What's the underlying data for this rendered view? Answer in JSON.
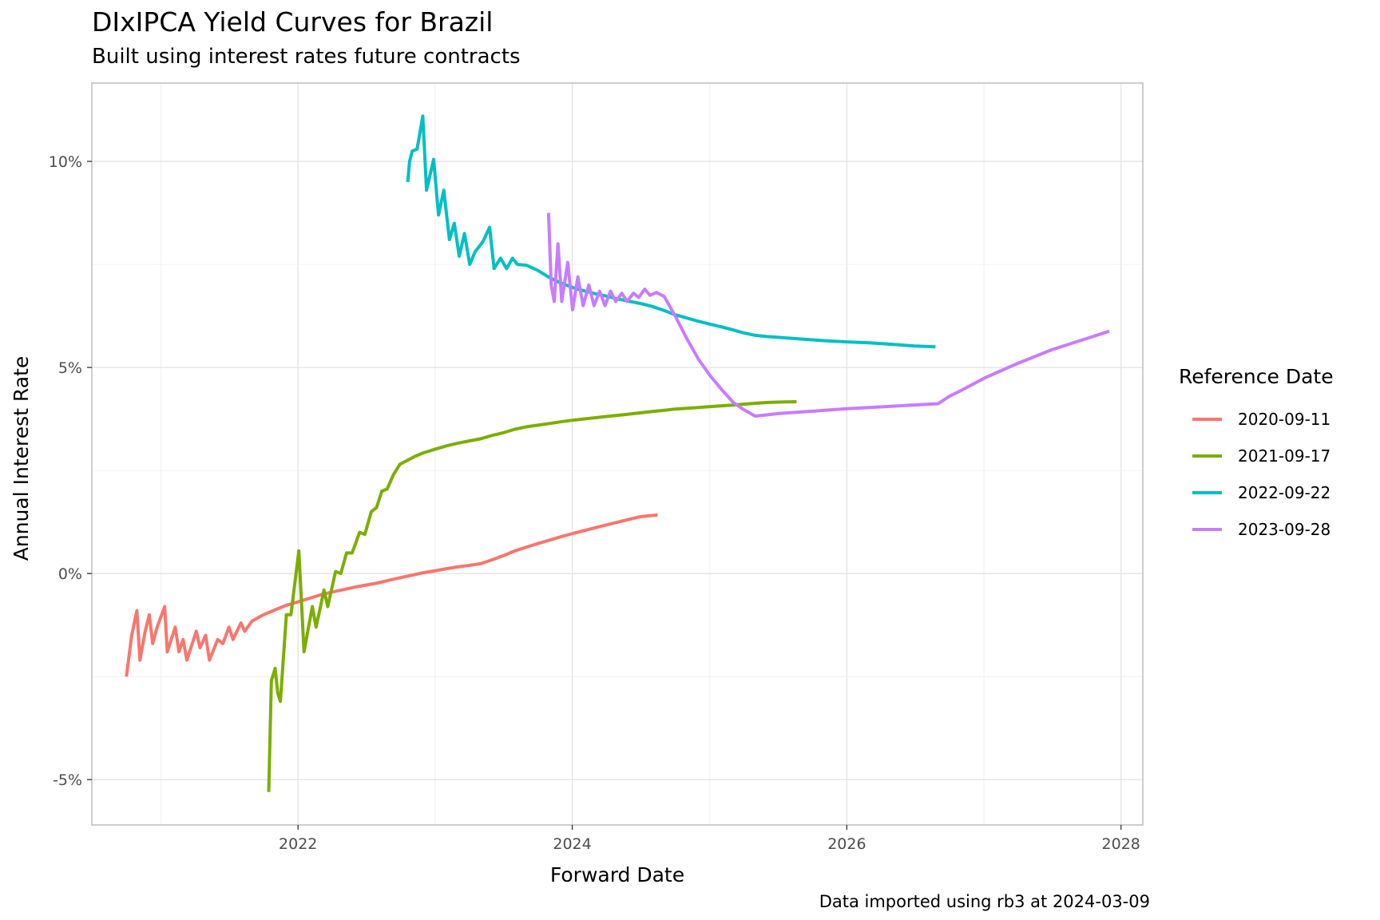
{
  "chart_data": {
    "type": "line",
    "title": "DIxIPCA Yield Curves for Brazil",
    "subtitle": "Built using interest rates future contracts",
    "caption": "Data imported using rb3 at 2024-03-09",
    "xlabel": "Forward Date",
    "ylabel": "Annual Interest Rate",
    "xlim": [
      "2020-07-01",
      "2028-02-28"
    ],
    "ylim": [
      -6.1,
      11.9
    ],
    "x_ticks": [
      "2022",
      "2024",
      "2026",
      "2028"
    ],
    "y_ticks": [
      "-5%",
      "0%",
      "5%",
      "10%"
    ],
    "grid": true,
    "legend": {
      "title": "Reference Date",
      "position": "right"
    },
    "series": [
      {
        "name": "2020-09-11",
        "color": "#F8766D",
        "points": [
          [
            "2020-10-01",
            -2.5
          ],
          [
            "2020-10-15",
            -1.5
          ],
          [
            "2020-10-29",
            -0.9
          ],
          [
            "2020-11-06",
            -2.1
          ],
          [
            "2020-11-20",
            -1.4
          ],
          [
            "2020-12-01",
            -1.0
          ],
          [
            "2020-12-10",
            -1.7
          ],
          [
            "2020-12-22",
            -1.3
          ],
          [
            "2021-01-11",
            -0.8
          ],
          [
            "2021-01-18",
            -1.9
          ],
          [
            "2021-02-08",
            -1.3
          ],
          [
            "2021-02-18",
            -1.9
          ],
          [
            "2021-03-01",
            -1.6
          ],
          [
            "2021-03-11",
            -2.1
          ],
          [
            "2021-04-05",
            -1.4
          ],
          [
            "2021-04-15",
            -1.8
          ],
          [
            "2021-04-30",
            -1.5
          ],
          [
            "2021-05-10",
            -2.1
          ],
          [
            "2021-06-01",
            -1.6
          ],
          [
            "2021-06-15",
            -1.7
          ],
          [
            "2021-07-01",
            -1.3
          ],
          [
            "2021-07-12",
            -1.6
          ],
          [
            "2021-08-02",
            -1.2
          ],
          [
            "2021-08-12",
            -1.4
          ],
          [
            "2021-09-01",
            -1.15
          ],
          [
            "2021-10-01",
            -1.0
          ],
          [
            "2021-11-01",
            -0.88
          ],
          [
            "2021-12-01",
            -0.77
          ],
          [
            "2022-01-03",
            -0.68
          ],
          [
            "2022-02-01",
            -0.6
          ],
          [
            "2022-03-01",
            -0.52
          ],
          [
            "2022-04-01",
            -0.45
          ],
          [
            "2022-05-02",
            -0.39
          ],
          [
            "2022-06-01",
            -0.33
          ],
          [
            "2022-07-01",
            -0.28
          ],
          [
            "2022-08-01",
            -0.23
          ],
          [
            "2022-09-01",
            -0.16
          ],
          [
            "2022-10-01",
            -0.1
          ],
          [
            "2022-11-01",
            -0.04
          ],
          [
            "2022-12-01",
            0.02
          ],
          [
            "2023-01-02",
            0.07
          ],
          [
            "2023-02-01",
            0.12
          ],
          [
            "2023-03-01",
            0.16
          ],
          [
            "2023-04-03",
            0.2
          ],
          [
            "2023-05-02",
            0.24
          ],
          [
            "2023-06-01",
            0.33
          ],
          [
            "2023-07-03",
            0.44
          ],
          [
            "2023-08-01",
            0.55
          ],
          [
            "2023-09-01",
            0.64
          ],
          [
            "2023-10-02",
            0.73
          ],
          [
            "2023-11-01",
            0.81
          ],
          [
            "2023-12-01",
            0.89
          ],
          [
            "2024-01-02",
            0.97
          ],
          [
            "2024-02-01",
            1.04
          ],
          [
            "2024-03-01",
            1.11
          ],
          [
            "2024-04-01",
            1.18
          ],
          [
            "2024-05-02",
            1.25
          ],
          [
            "2024-06-03",
            1.32
          ],
          [
            "2024-07-01",
            1.38
          ],
          [
            "2024-08-15",
            1.42
          ]
        ]
      },
      {
        "name": "2021-09-17",
        "color": "#7CAE00",
        "points": [
          [
            "2021-10-15",
            -5.3
          ],
          [
            "2021-10-22",
            -2.6
          ],
          [
            "2021-11-01",
            -2.3
          ],
          [
            "2021-11-08",
            -2.9
          ],
          [
            "2021-11-15",
            -3.1
          ],
          [
            "2021-12-01",
            -1.0
          ],
          [
            "2021-12-13",
            -1.0
          ],
          [
            "2022-01-03",
            0.55
          ],
          [
            "2022-01-17",
            -1.9
          ],
          [
            "2022-02-08",
            -0.8
          ],
          [
            "2022-02-18",
            -1.3
          ],
          [
            "2022-03-11",
            -0.4
          ],
          [
            "2022-03-21",
            -0.8
          ],
          [
            "2022-04-11",
            0.05
          ],
          [
            "2022-04-25",
            0.0
          ],
          [
            "2022-05-10",
            0.5
          ],
          [
            "2022-05-25",
            0.5
          ],
          [
            "2022-06-14",
            1.0
          ],
          [
            "2022-06-28",
            0.95
          ],
          [
            "2022-07-15",
            1.5
          ],
          [
            "2022-07-29",
            1.6
          ],
          [
            "2022-08-12",
            2.0
          ],
          [
            "2022-08-26",
            2.05
          ],
          [
            "2022-09-12",
            2.4
          ],
          [
            "2022-09-29",
            2.65
          ],
          [
            "2022-10-20",
            2.75
          ],
          [
            "2022-11-10",
            2.85
          ],
          [
            "2022-12-01",
            2.93
          ],
          [
            "2023-01-02",
            3.02
          ],
          [
            "2023-02-01",
            3.1
          ],
          [
            "2023-03-01",
            3.16
          ],
          [
            "2023-04-03",
            3.22
          ],
          [
            "2023-05-02",
            3.27
          ],
          [
            "2023-06-01",
            3.35
          ],
          [
            "2023-07-03",
            3.42
          ],
          [
            "2023-08-01",
            3.5
          ],
          [
            "2023-09-01",
            3.56
          ],
          [
            "2023-10-02",
            3.6
          ],
          [
            "2023-11-01",
            3.64
          ],
          [
            "2023-12-01",
            3.68
          ],
          [
            "2024-01-02",
            3.72
          ],
          [
            "2024-02-01",
            3.75
          ],
          [
            "2024-03-01",
            3.78
          ],
          [
            "2024-04-01",
            3.81
          ],
          [
            "2024-05-02",
            3.84
          ],
          [
            "2024-06-03",
            3.87
          ],
          [
            "2024-07-01",
            3.9
          ],
          [
            "2024-08-01",
            3.93
          ],
          [
            "2024-09-02",
            3.96
          ],
          [
            "2024-10-01",
            3.99
          ],
          [
            "2024-11-01",
            4.01
          ],
          [
            "2024-12-02",
            4.03
          ],
          [
            "2025-01-02",
            4.05
          ],
          [
            "2025-02-03",
            4.07
          ],
          [
            "2025-03-05",
            4.09
          ],
          [
            "2025-04-01",
            4.11
          ],
          [
            "2025-05-02",
            4.13
          ],
          [
            "2025-06-02",
            4.15
          ],
          [
            "2025-07-01",
            4.16
          ],
          [
            "2025-08-20",
            4.17
          ]
        ]
      },
      {
        "name": "2022-09-22",
        "color": "#00BFC4",
        "points": [
          [
            "2022-10-20",
            9.5
          ],
          [
            "2022-10-25",
            10.0
          ],
          [
            "2022-11-01",
            10.25
          ],
          [
            "2022-11-14",
            10.3
          ],
          [
            "2022-11-29",
            11.1
          ],
          [
            "2022-12-09",
            9.3
          ],
          [
            "2022-12-28",
            10.05
          ],
          [
            "2023-01-10",
            8.7
          ],
          [
            "2023-01-24",
            9.3
          ],
          [
            "2023-02-08",
            8.1
          ],
          [
            "2023-02-21",
            8.5
          ],
          [
            "2023-03-06",
            7.7
          ],
          [
            "2023-03-20",
            8.25
          ],
          [
            "2023-04-03",
            7.5
          ],
          [
            "2023-04-17",
            7.8
          ],
          [
            "2023-05-08",
            8.05
          ],
          [
            "2023-05-26",
            8.4
          ],
          [
            "2023-06-07",
            7.4
          ],
          [
            "2023-06-24",
            7.65
          ],
          [
            "2023-07-10",
            7.4
          ],
          [
            "2023-07-26",
            7.65
          ],
          [
            "2023-08-08",
            7.5
          ],
          [
            "2023-09-01",
            7.48
          ],
          [
            "2023-10-02",
            7.35
          ],
          [
            "2023-11-01",
            7.18
          ],
          [
            "2023-12-01",
            7.05
          ],
          [
            "2024-01-02",
            6.94
          ],
          [
            "2024-02-01",
            6.86
          ],
          [
            "2024-03-01",
            6.79
          ],
          [
            "2024-04-01",
            6.73
          ],
          [
            "2024-05-02",
            6.66
          ],
          [
            "2024-06-03",
            6.6
          ],
          [
            "2024-07-01",
            6.55
          ],
          [
            "2024-08-01",
            6.48
          ],
          [
            "2024-09-02",
            6.38
          ],
          [
            "2024-10-01",
            6.28
          ],
          [
            "2024-11-01",
            6.2
          ],
          [
            "2024-12-02",
            6.12
          ],
          [
            "2025-01-02",
            6.05
          ],
          [
            "2025-02-03",
            5.98
          ],
          [
            "2025-03-05",
            5.91
          ],
          [
            "2025-04-01",
            5.84
          ],
          [
            "2025-05-02",
            5.78
          ],
          [
            "2025-06-02",
            5.75
          ],
          [
            "2025-07-01",
            5.73
          ],
          [
            "2025-09-01",
            5.69
          ],
          [
            "2025-11-03",
            5.65
          ],
          [
            "2026-01-02",
            5.62
          ],
          [
            "2026-03-02",
            5.6
          ],
          [
            "2026-05-04",
            5.56
          ],
          [
            "2026-07-01",
            5.52
          ],
          [
            "2026-08-25",
            5.5
          ]
        ]
      },
      {
        "name": "2023-09-28",
        "color": "#C77CFF",
        "points": [
          [
            "2023-10-30",
            8.75
          ],
          [
            "2023-11-06",
            7.0
          ],
          [
            "2023-11-14",
            6.6
          ],
          [
            "2023-11-24",
            8.0
          ],
          [
            "2023-12-04",
            6.6
          ],
          [
            "2023-12-20",
            7.55
          ],
          [
            "2024-01-02",
            6.4
          ],
          [
            "2024-01-16",
            7.2
          ],
          [
            "2024-01-30",
            6.5
          ],
          [
            "2024-02-14",
            7.0
          ],
          [
            "2024-02-28",
            6.5
          ],
          [
            "2024-03-14",
            6.85
          ],
          [
            "2024-03-28",
            6.5
          ],
          [
            "2024-04-12",
            6.85
          ],
          [
            "2024-04-26",
            6.6
          ],
          [
            "2024-05-12",
            6.8
          ],
          [
            "2024-05-26",
            6.6
          ],
          [
            "2024-06-12",
            6.8
          ],
          [
            "2024-06-26",
            6.7
          ],
          [
            "2024-07-12",
            6.9
          ],
          [
            "2024-07-26",
            6.75
          ],
          [
            "2024-08-12",
            6.82
          ],
          [
            "2024-09-02",
            6.72
          ],
          [
            "2024-10-01",
            6.25
          ],
          [
            "2024-11-01",
            5.7
          ],
          [
            "2024-12-02",
            5.2
          ],
          [
            "2025-01-02",
            4.8
          ],
          [
            "2025-02-03",
            4.45
          ],
          [
            "2025-03-05",
            4.15
          ],
          [
            "2025-04-01",
            3.98
          ],
          [
            "2025-05-02",
            3.82
          ],
          [
            "2025-06-02",
            3.85
          ],
          [
            "2025-07-01",
            3.88
          ],
          [
            "2025-09-01",
            3.92
          ],
          [
            "2025-11-03",
            3.96
          ],
          [
            "2026-01-02",
            4.0
          ],
          [
            "2026-03-02",
            4.03
          ],
          [
            "2026-05-04",
            4.06
          ],
          [
            "2026-07-01",
            4.09
          ],
          [
            "2026-09-01",
            4.12
          ],
          [
            "2026-10-01",
            4.3
          ],
          [
            "2026-11-03",
            4.45
          ],
          [
            "2027-01-04",
            4.75
          ],
          [
            "2027-04-01",
            5.1
          ],
          [
            "2027-07-01",
            5.43
          ],
          [
            "2027-10-01",
            5.7
          ],
          [
            "2027-12-01",
            5.88
          ]
        ]
      }
    ]
  }
}
